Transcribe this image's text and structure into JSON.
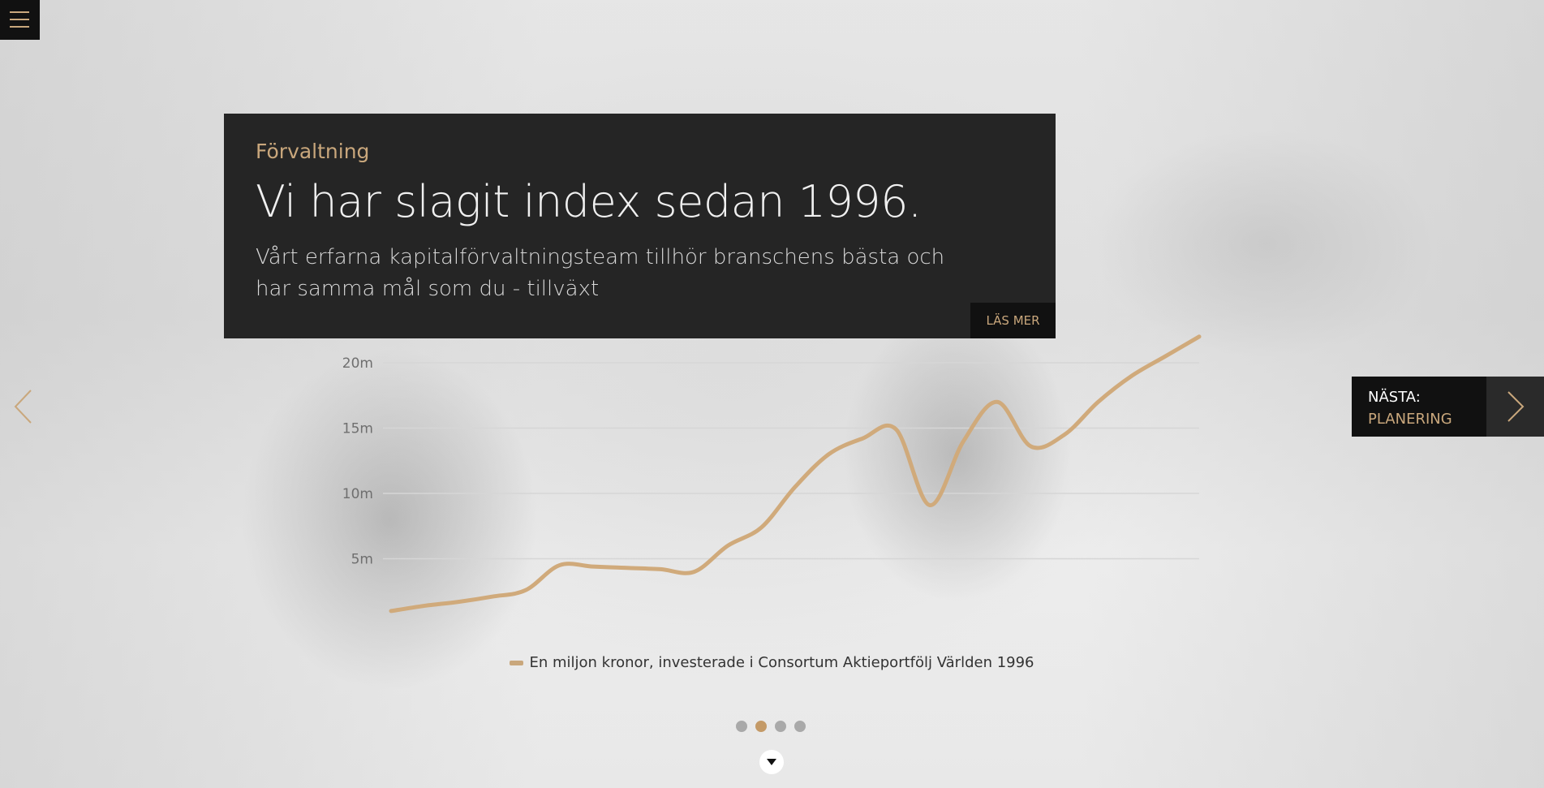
{
  "hero": {
    "eyebrow": "Förvaltning",
    "headline": "Vi har slagit index sedan 1996.",
    "body": "Vårt erfarna kapitalförvaltningsteam tillhör branschens bästa och har samma mål som du - tillväxt",
    "read_more_label": "LÄS MER"
  },
  "navigation": {
    "menu_icon": "hamburger-icon",
    "prev_icon": "chevron-left-icon",
    "next_label": "NÄSTA:",
    "next_target": "PLANERING",
    "next_icon": "chevron-right-icon",
    "scroll_icon": "caret-down-icon"
  },
  "pagination": {
    "count": 4,
    "active_index": 1
  },
  "colors": {
    "accent": "#c9a77c",
    "panel": "#252525",
    "dark": "#111111"
  },
  "chart_data": {
    "type": "line",
    "y_ticks": [
      "20m",
      "15m",
      "10m",
      "5m"
    ],
    "ylim": [
      0,
      21
    ],
    "grid": true,
    "legend_position": "bottom",
    "series": [
      {
        "name": "En miljon kronor, investerade i Consortum Aktieportfölj Världen 1996",
        "color": "#d0aa7b",
        "values": [
          1.0,
          1.4,
          1.7,
          2.1,
          2.6,
          4.5,
          4.4,
          4.3,
          4.2,
          4.0,
          6.0,
          7.4,
          10.5,
          13.0,
          14.2,
          14.9,
          9.1,
          14.0,
          17.0,
          13.6,
          14.5,
          17.0,
          19.0,
          20.5,
          22.0
        ]
      }
    ]
  }
}
